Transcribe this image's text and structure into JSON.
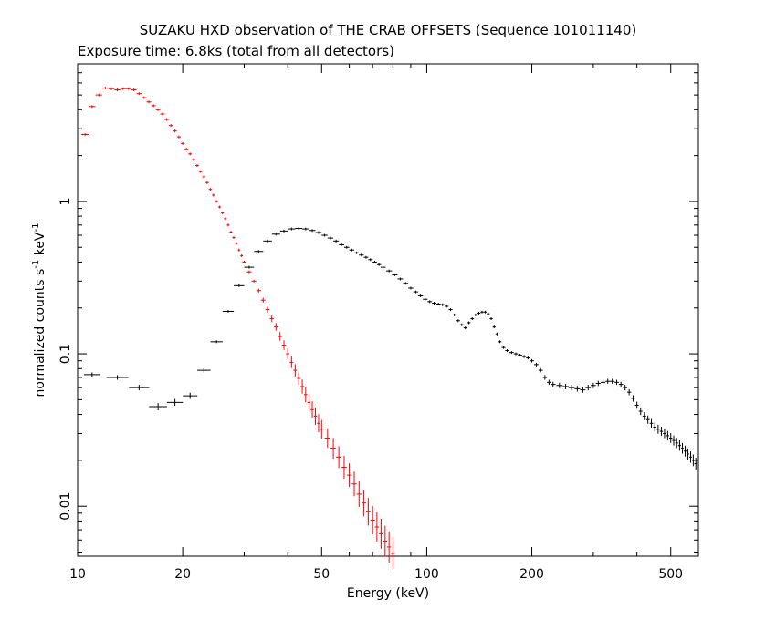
{
  "chart_data": {
    "type": "scatter",
    "title": "SUZAKU HXD observation of THE CRAB OFFSETS (Sequence 101011140)",
    "subtitle": "Exposure time: 6.8ks (total from all detectors)",
    "xlabel": "Energy (keV)",
    "ylabel": "normalized counts s",
    "ylabel_sup1": "-1",
    "ylabel_mid": " keV",
    "ylabel_sup2": "-1",
    "xscale": "log",
    "yscale": "log",
    "xlim": [
      10,
      600
    ],
    "ylim": [
      0.0047,
      8
    ],
    "xticks": [
      {
        "value": 10,
        "label": "10"
      },
      {
        "value": 20,
        "label": "20"
      },
      {
        "value": 50,
        "label": "50"
      },
      {
        "value": 100,
        "label": "100"
      },
      {
        "value": 200,
        "label": "200"
      },
      {
        "value": 500,
        "label": "500"
      }
    ],
    "yticks": [
      {
        "value": 0.01,
        "label": "0.01"
      },
      {
        "value": 0.1,
        "label": "0.1"
      },
      {
        "value": 1,
        "label": "1"
      }
    ],
    "series": [
      {
        "color": "#ff0000",
        "points": [
          [
            10.5,
            2.75
          ],
          [
            11.0,
            4.2
          ],
          [
            11.5,
            5.0
          ],
          [
            12.0,
            5.55
          ],
          [
            12.5,
            5.5
          ],
          [
            13.0,
            5.4
          ],
          [
            13.5,
            5.5
          ],
          [
            14.0,
            5.5
          ],
          [
            14.5,
            5.4
          ],
          [
            15.0,
            5.1
          ],
          [
            15.5,
            4.8
          ],
          [
            16.0,
            4.5
          ],
          [
            16.5,
            4.25
          ],
          [
            17.0,
            4.0
          ],
          [
            17.5,
            3.75
          ],
          [
            18.0,
            3.45
          ],
          [
            18.5,
            3.15
          ],
          [
            19.0,
            2.9
          ],
          [
            19.5,
            2.65
          ],
          [
            20.0,
            2.4
          ],
          [
            20.5,
            2.2
          ],
          [
            21.0,
            2.05
          ],
          [
            21.5,
            1.88
          ],
          [
            22.0,
            1.72
          ],
          [
            22.5,
            1.57
          ],
          [
            23.0,
            1.45
          ],
          [
            23.5,
            1.33
          ],
          [
            24.0,
            1.2
          ],
          [
            24.5,
            1.1
          ],
          [
            25.0,
            1.0
          ],
          [
            25.5,
            0.92
          ],
          [
            26.0,
            0.84
          ],
          [
            26.5,
            0.77
          ],
          [
            27.0,
            0.7
          ],
          [
            27.5,
            0.63
          ],
          [
            28.0,
            0.58
          ],
          [
            28.5,
            0.53
          ],
          [
            29.0,
            0.48
          ],
          [
            29.5,
            0.44
          ],
          [
            30.0,
            0.4
          ],
          [
            31.0,
            0.345
          ],
          [
            32.0,
            0.3
          ],
          [
            33.0,
            0.26
          ],
          [
            34.0,
            0.225
          ],
          [
            35.0,
            0.195
          ],
          [
            36.0,
            0.17
          ],
          [
            37.0,
            0.15
          ],
          [
            38.0,
            0.13
          ],
          [
            39.0,
            0.114
          ],
          [
            40.0,
            0.1
          ],
          [
            41.0,
            0.088
          ],
          [
            42.0,
            0.078
          ],
          [
            43.0,
            0.069
          ],
          [
            44.0,
            0.061
          ],
          [
            45.0,
            0.054
          ],
          [
            46.0,
            0.048
          ],
          [
            47.0,
            0.043
          ],
          [
            48.0,
            0.039
          ],
          [
            49.0,
            0.035
          ],
          [
            50.0,
            0.032
          ],
          [
            52.0,
            0.028
          ],
          [
            54.0,
            0.024
          ],
          [
            56.0,
            0.021
          ],
          [
            58.0,
            0.018
          ],
          [
            60.0,
            0.016
          ],
          [
            62.0,
            0.014
          ],
          [
            64.0,
            0.012
          ],
          [
            66.0,
            0.0105
          ],
          [
            68.0,
            0.0092
          ],
          [
            70.0,
            0.0081
          ],
          [
            72.0,
            0.0073
          ],
          [
            74.0,
            0.0066
          ],
          [
            76.0,
            0.0059
          ],
          [
            78.0,
            0.0054
          ],
          [
            80.0,
            0.0049
          ]
        ]
      },
      {
        "color": "#000000",
        "points": [
          [
            11.0,
            0.073
          ],
          [
            13.0,
            0.07
          ],
          [
            15.0,
            0.06
          ],
          [
            17.0,
            0.045
          ],
          [
            19.0,
            0.048
          ],
          [
            21.0,
            0.053
          ],
          [
            23.0,
            0.078
          ],
          [
            25.0,
            0.12
          ],
          [
            27.0,
            0.19
          ],
          [
            29.0,
            0.28
          ],
          [
            31.0,
            0.37
          ],
          [
            33.0,
            0.47
          ],
          [
            35.0,
            0.55
          ],
          [
            37.0,
            0.61
          ],
          [
            39.0,
            0.64
          ],
          [
            41.0,
            0.66
          ],
          [
            43.0,
            0.665
          ],
          [
            45.0,
            0.66
          ],
          [
            47.0,
            0.645
          ],
          [
            49.0,
            0.625
          ],
          [
            51.0,
            0.6
          ],
          [
            53.0,
            0.575
          ],
          [
            55.0,
            0.55
          ],
          [
            57.0,
            0.52
          ],
          [
            59.0,
            0.5
          ],
          [
            61.0,
            0.48
          ],
          [
            63.0,
            0.46
          ],
          [
            65.0,
            0.445
          ],
          [
            67.0,
            0.43
          ],
          [
            69.0,
            0.415
          ],
          [
            71.0,
            0.4
          ],
          [
            73.0,
            0.385
          ],
          [
            75.0,
            0.37
          ],
          [
            78.0,
            0.35
          ],
          [
            81.0,
            0.33
          ],
          [
            84.0,
            0.31
          ],
          [
            87.0,
            0.29
          ],
          [
            90.0,
            0.27
          ],
          [
            93.0,
            0.255
          ],
          [
            96.0,
            0.24
          ],
          [
            99.0,
            0.228
          ],
          [
            102.0,
            0.22
          ],
          [
            105.0,
            0.215
          ],
          [
            108.0,
            0.212
          ],
          [
            111.0,
            0.21
          ],
          [
            114.0,
            0.205
          ],
          [
            117.0,
            0.195
          ],
          [
            120.0,
            0.18
          ],
          [
            123.0,
            0.165
          ],
          [
            126.0,
            0.155
          ],
          [
            129.0,
            0.148
          ],
          [
            132.0,
            0.16
          ],
          [
            135.0,
            0.17
          ],
          [
            138.0,
            0.18
          ],
          [
            141.0,
            0.185
          ],
          [
            144.0,
            0.188
          ],
          [
            147.0,
            0.188
          ],
          [
            150.0,
            0.183
          ],
          [
            153.0,
            0.17
          ],
          [
            156.0,
            0.15
          ],
          [
            159.0,
            0.135
          ],
          [
            162.0,
            0.12
          ],
          [
            166.0,
            0.11
          ],
          [
            170.0,
            0.105
          ],
          [
            175.0,
            0.102
          ],
          [
            180.0,
            0.1
          ],
          [
            185.0,
            0.098
          ],
          [
            190.0,
            0.096
          ],
          [
            195.0,
            0.094
          ],
          [
            200.0,
            0.09
          ],
          [
            206.0,
            0.085
          ],
          [
            212.0,
            0.078
          ],
          [
            218.0,
            0.07
          ],
          [
            224.0,
            0.065
          ],
          [
            230.0,
            0.063
          ],
          [
            240.0,
            0.062
          ],
          [
            250.0,
            0.061
          ],
          [
            260.0,
            0.06
          ],
          [
            270.0,
            0.059
          ],
          [
            280.0,
            0.058
          ],
          [
            290.0,
            0.06
          ],
          [
            300.0,
            0.062
          ],
          [
            310.0,
            0.064
          ],
          [
            320.0,
            0.065
          ],
          [
            330.0,
            0.066
          ],
          [
            340.0,
            0.066
          ],
          [
            350.0,
            0.065
          ],
          [
            360.0,
            0.063
          ],
          [
            370.0,
            0.06
          ],
          [
            380.0,
            0.056
          ],
          [
            390.0,
            0.051
          ],
          [
            400.0,
            0.046
          ],
          [
            410.0,
            0.042
          ],
          [
            420.0,
            0.039
          ],
          [
            430.0,
            0.037
          ],
          [
            440.0,
            0.035
          ],
          [
            450.0,
            0.033
          ],
          [
            460.0,
            0.032
          ],
          [
            470.0,
            0.031
          ],
          [
            480.0,
            0.03
          ],
          [
            490.0,
            0.029
          ],
          [
            500.0,
            0.028
          ],
          [
            510.0,
            0.027
          ],
          [
            520.0,
            0.026
          ],
          [
            530.0,
            0.025
          ],
          [
            540.0,
            0.024
          ],
          [
            550.0,
            0.023
          ],
          [
            560.0,
            0.022
          ],
          [
            570.0,
            0.021
          ],
          [
            580.0,
            0.02
          ],
          [
            590.0,
            0.019
          ]
        ]
      }
    ]
  }
}
